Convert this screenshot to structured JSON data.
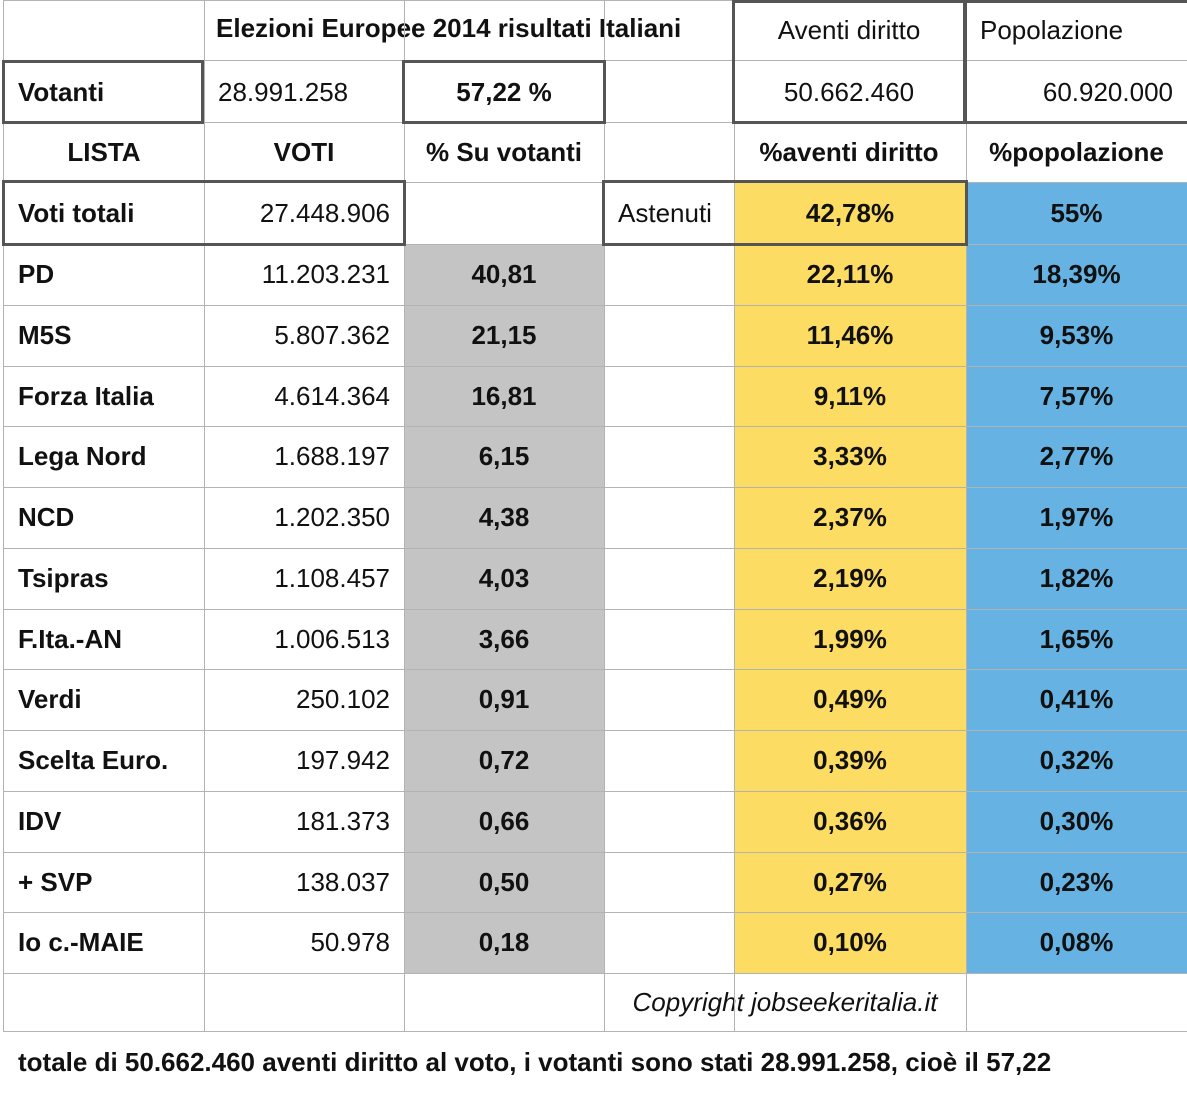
{
  "header": {
    "title": "Elezioni Europee 2014 risultati Italiani",
    "aventi_label": "Aventi diritto",
    "popolazione_label": "Popolazione"
  },
  "votanti": {
    "label": "Votanti",
    "count": "28.991.258",
    "percent": "57,22 %",
    "aventi_value": "50.662.460",
    "popolazione_value": "60.920.000"
  },
  "columns": {
    "lista": "LISTA",
    "voti": "VOTI",
    "su_votanti": "% Su votanti",
    "aventi_pct": "%aventi diritto",
    "popolazione_pct": "%popolazione"
  },
  "totals": {
    "label": "Voti totali",
    "value": "27.448.906",
    "astenuti_label": "Astenuti",
    "astenuti_aventi": "42,78%",
    "astenuti_pop": "55%"
  },
  "rows": [
    {
      "lista": "PD",
      "voti": "11.203.231",
      "su_votanti": "40,81",
      "aventi": "22,11%",
      "pop": "18,39%"
    },
    {
      "lista": "M5S",
      "voti": "5.807.362",
      "su_votanti": "21,15",
      "aventi": "11,46%",
      "pop": "9,53%"
    },
    {
      "lista": "Forza Italia",
      "voti": "4.614.364",
      "su_votanti": "16,81",
      "aventi": "9,11%",
      "pop": "7,57%"
    },
    {
      "lista": "Lega Nord",
      "voti": "1.688.197",
      "su_votanti": "6,15",
      "aventi": "3,33%",
      "pop": "2,77%"
    },
    {
      "lista": "NCD",
      "voti": "1.202.350",
      "su_votanti": "4,38",
      "aventi": "2,37%",
      "pop": "1,97%"
    },
    {
      "lista": "Tsipras",
      "voti": "1.108.457",
      "su_votanti": "4,03",
      "aventi": "2,19%",
      "pop": "1,82%"
    },
    {
      "lista": "F.Ita.-AN",
      "voti": "1.006.513",
      "su_votanti": "3,66",
      "aventi": "1,99%",
      "pop": "1,65%"
    },
    {
      "lista": "Verdi",
      "voti": "250.102",
      "su_votanti": "0,91",
      "aventi": "0,49%",
      "pop": "0,41%"
    },
    {
      "lista": "Scelta Euro.",
      "voti": "197.942",
      "su_votanti": "0,72",
      "aventi": "0,39%",
      "pop": "0,32%"
    },
    {
      "lista": "IDV",
      "voti": "181.373",
      "su_votanti": "0,66",
      "aventi": "0,36%",
      "pop": "0,30%"
    },
    {
      "lista": "+ SVP",
      "voti": "138.037",
      "su_votanti": "0,50",
      "aventi": "0,27%",
      "pop": "0,23%"
    },
    {
      "lista": "Io c.-MAIE",
      "voti": "50.978",
      "su_votanti": "0,18",
      "aventi": "0,10%",
      "pop": "0,08%"
    }
  ],
  "copyright": "Copyright jobseekeritalia.it",
  "footer_text": "totale di 50.662.460 aventi diritto al voto, i votanti sono stati 28.991.258, cioè il 57,22",
  "colors": {
    "gray_fill": "#c4c4c4",
    "yellow_fill": "#fcdc62",
    "blue_fill": "#66b3e3",
    "grid": "#b3b3b3",
    "box_border": "#555555"
  }
}
